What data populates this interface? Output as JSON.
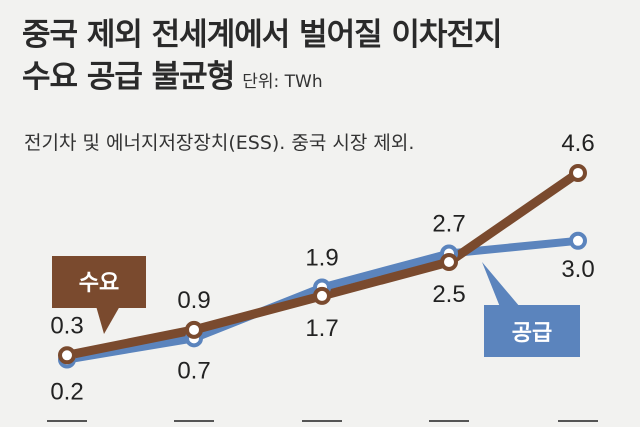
{
  "title": {
    "line1": "중국 제외 전세계에서 벌어질 이차전지",
    "line2": "수요 공급 불균형",
    "unit": "단위: TWh"
  },
  "subtitle": "전기차 및 에너지저장장치(ESS). 중국 시장 제외.",
  "colors": {
    "demand": "#7a4a2e",
    "supply": "#5b84bd",
    "background": "#f2f2f0"
  },
  "chart_data": {
    "type": "line",
    "x": [
      0,
      1,
      2,
      3,
      4
    ],
    "series": [
      {
        "name": "수요",
        "values": [
          0.3,
          0.9,
          1.7,
          2.5,
          4.6
        ],
        "color": "#7a4a2e"
      },
      {
        "name": "공급",
        "values": [
          0.2,
          0.7,
          1.9,
          2.7,
          3.0
        ],
        "color": "#5b84bd"
      }
    ],
    "data_labels": {
      "demand": [
        "0.3",
        "0.9",
        "1.7",
        "2.5",
        "4.6"
      ],
      "supply": [
        "0.2",
        "0.7",
        "1.9",
        "2.7",
        "3.0"
      ]
    },
    "legend": {
      "demand": "수요",
      "supply": "공급"
    }
  }
}
